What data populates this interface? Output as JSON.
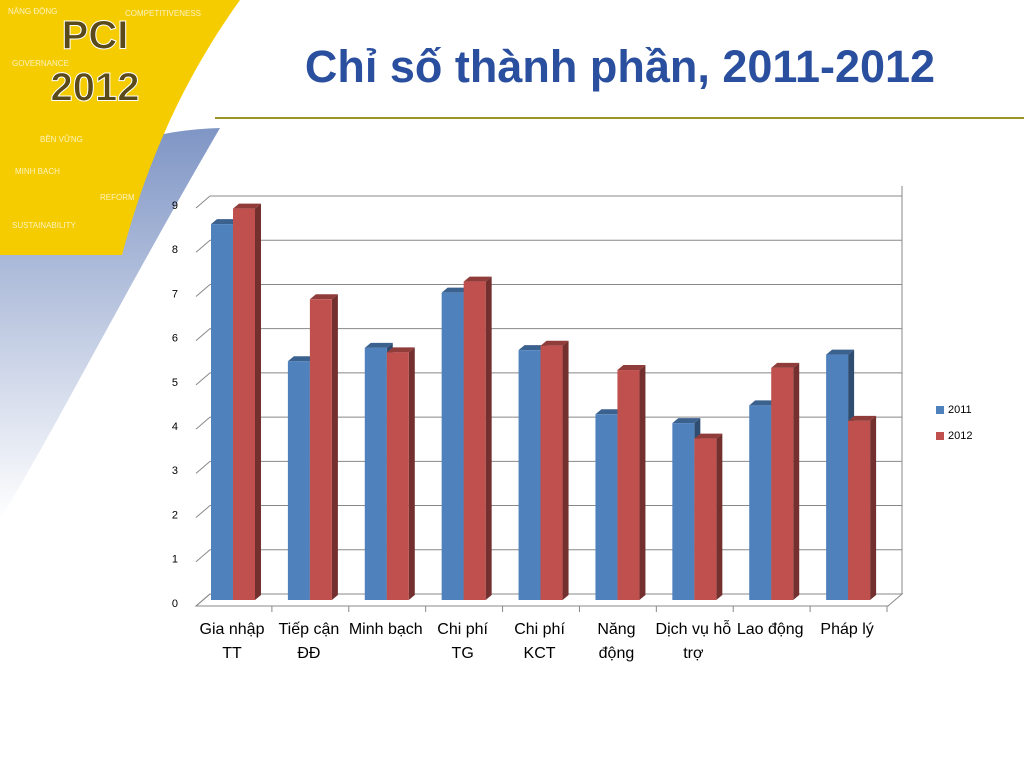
{
  "logo": {
    "title": "PCI",
    "year": "2012",
    "words": [
      "NĂNG ĐỘNG",
      "COMPETITIVENESS",
      "GOVERNANCE",
      "BỀN VỮNG",
      "MINH BẠCH",
      "REFORM",
      "SUSTAINABILITY"
    ]
  },
  "chart_data": {
    "type": "bar3d",
    "title": "Chỉ số thành phần, 2011-2012",
    "categories": [
      "Gia nhập TT",
      "Tiếp cận ĐĐ",
      "Minh bạch",
      "Chi phí TG",
      "Chi phí KCT",
      "Năng động",
      "Dịch vụ hỗ trợ",
      "Lao động",
      "Pháp lý"
    ],
    "series": [
      {
        "name": "2011",
        "color": "#4f81bd",
        "values": [
          8.5,
          5.4,
          5.7,
          6.95,
          5.65,
          4.2,
          4.0,
          4.4,
          5.55
        ]
      },
      {
        "name": "2012",
        "color": "#c0504d",
        "values": [
          8.85,
          6.8,
          5.6,
          7.2,
          5.75,
          5.2,
          3.65,
          5.25,
          4.05
        ]
      }
    ],
    "ylim": [
      0,
      9
    ],
    "yticks": [
      0,
      1,
      2,
      3,
      4,
      5,
      6,
      7,
      8,
      9
    ],
    "grid": true,
    "legend": "right"
  }
}
